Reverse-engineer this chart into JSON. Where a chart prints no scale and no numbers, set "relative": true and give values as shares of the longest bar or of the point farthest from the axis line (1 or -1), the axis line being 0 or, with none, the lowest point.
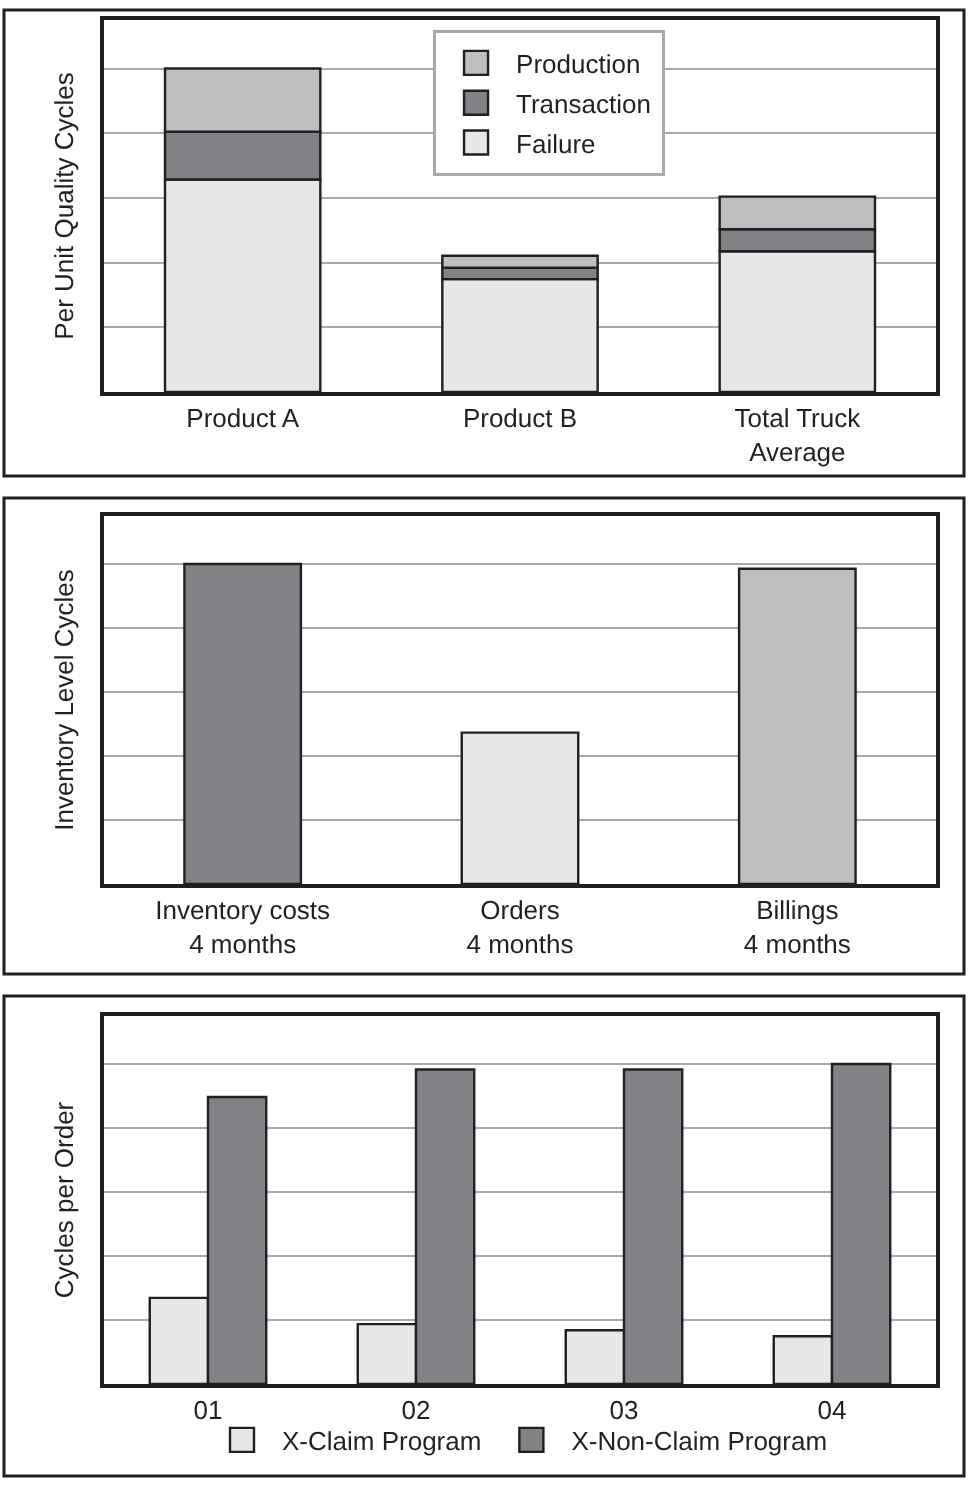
{
  "chart_data": [
    {
      "type": "bar",
      "stacked": true,
      "relative": true,
      "ylabel": "Per Unit Quality Cycles",
      "categories": [
        "Product A",
        "Product B",
        "Total Truck\nAverage"
      ],
      "grid": "y",
      "legend": "top",
      "series": [
        {
          "name": "Failure",
          "color": "#e6e7e8",
          "values": [
            0.657,
            0.349,
            0.435
          ]
        },
        {
          "name": "Transaction",
          "color": "#808285",
          "values": [
            0.148,
            0.035,
            0.068
          ]
        },
        {
          "name": "Production",
          "color": "#bcbec0",
          "values": [
            0.195,
            0.037,
            0.101
          ]
        }
      ]
    },
    {
      "type": "bar",
      "relative": true,
      "ylabel": "Inventory Level Cycles",
      "categories": [
        "Inventory costs\n4 months",
        "Orders\n4 months",
        "Billings\n4 months"
      ],
      "grid": "y",
      "values": [
        1,
        0.473,
        0.985
      ],
      "colors": [
        "#808285",
        "#e6e7e8",
        "#bcbec0"
      ]
    },
    {
      "type": "bar",
      "relative": true,
      "ylabel": "Cycles per Order",
      "categories": [
        "01",
        "02",
        "03",
        "04"
      ],
      "grid": "y",
      "legend": "bottom",
      "series": [
        {
          "name": "X-Claim Program",
          "color": "#e6e7e8",
          "values": [
            0.269,
            0.187,
            0.168,
            0.149
          ]
        },
        {
          "name": "X-Non-Claim Program",
          "color": "#808285",
          "values": [
            0.897,
            0.983,
            0.983,
            1
          ]
        }
      ]
    }
  ]
}
